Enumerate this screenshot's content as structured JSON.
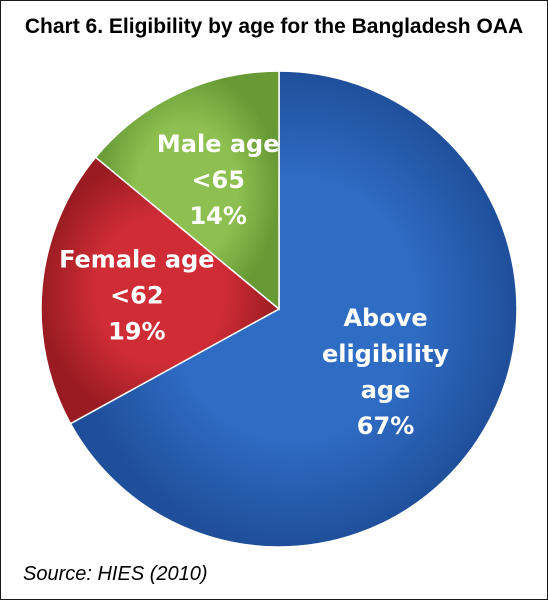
{
  "chart_data": {
    "type": "pie",
    "title": "Chart 6. Eligibility by age for the Bangladesh OAA",
    "source": "Source: HIES (2010)",
    "slices": [
      {
        "label_lines": [
          "Above",
          "eligibility",
          "age"
        ],
        "value": 67,
        "value_label": "67%",
        "color": "#2a63b8"
      },
      {
        "label_lines": [
          "Female age",
          "<62"
        ],
        "value": 19,
        "value_label": "19%",
        "color": "#c5272f"
      },
      {
        "label_lines": [
          "Male age",
          "<65"
        ],
        "value": 14,
        "value_label": "14%",
        "color": "#86b94a"
      }
    ]
  }
}
